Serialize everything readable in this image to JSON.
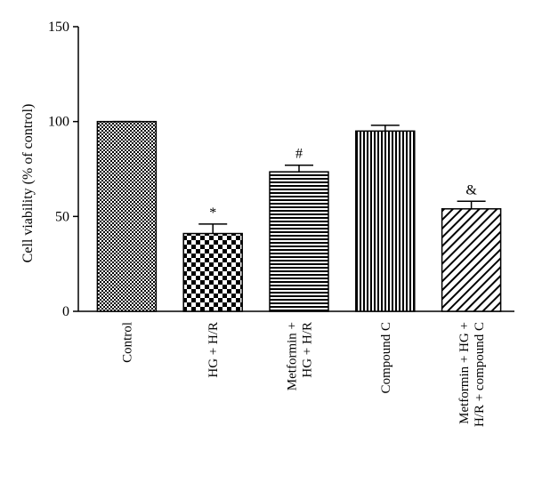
{
  "chart_data": {
    "type": "bar",
    "title": "",
    "xlabel": "",
    "ylabel": "Cell viability (% of control)",
    "ylim": [
      0,
      150
    ],
    "yticks": [
      0,
      50,
      100,
      150
    ],
    "grid": false,
    "categories": [
      [
        "Control"
      ],
      [
        "HG + H/R"
      ],
      [
        "Metformin +",
        "HG + H/R"
      ],
      [
        "Compound C"
      ],
      [
        "Metformin + HG +",
        "H/R + compound C"
      ]
    ],
    "values": [
      100,
      41,
      73.5,
      95,
      54
    ],
    "errors": [
      0,
      5,
      3.5,
      3,
      4
    ],
    "annotations": [
      "",
      "*",
      "#",
      "",
      "&"
    ],
    "fill_patterns": [
      "checker-small",
      "checker-large",
      "horizontal-lines",
      "vertical-lines",
      "diagonal-lines"
    ]
  }
}
